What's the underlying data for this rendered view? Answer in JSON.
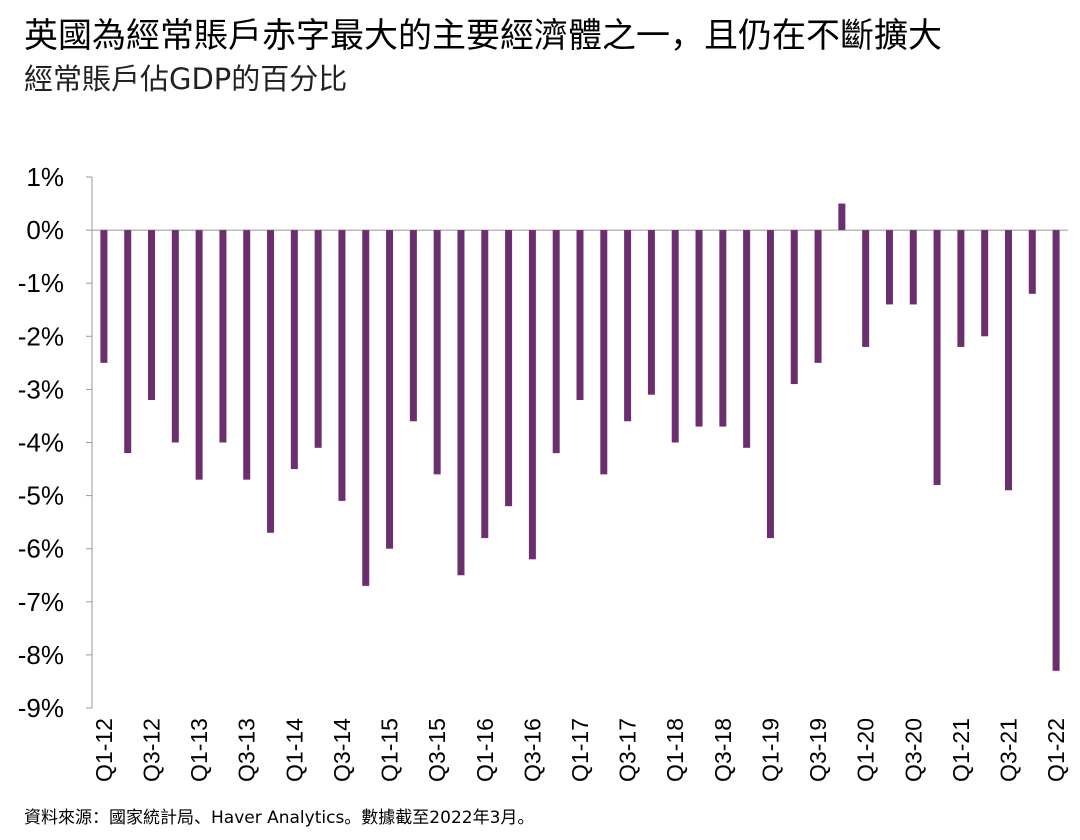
{
  "title": "英國為經常賬戶赤字最大的主要經濟體之一，且仍在不斷擴大",
  "subtitle": "經常賬戶佔GDP的百分比",
  "source": "資料來源：國家統計局、Haver Analytics。數據截至2022年3月。",
  "colors": {
    "bar": "#6B2F6E",
    "axis": "#999999"
  },
  "chart_data": {
    "type": "bar",
    "quarters": [
      "Q1-12",
      "Q2-12",
      "Q3-12",
      "Q4-12",
      "Q1-13",
      "Q2-13",
      "Q3-13",
      "Q4-13",
      "Q1-14",
      "Q2-14",
      "Q3-14",
      "Q4-14",
      "Q1-15",
      "Q2-15",
      "Q3-15",
      "Q4-15",
      "Q1-16",
      "Q2-16",
      "Q3-16",
      "Q4-16",
      "Q1-17",
      "Q2-17",
      "Q3-17",
      "Q4-17",
      "Q1-18",
      "Q2-18",
      "Q3-18",
      "Q4-18",
      "Q1-19",
      "Q2-19",
      "Q3-19",
      "Q4-19",
      "Q1-20",
      "Q2-20",
      "Q3-20",
      "Q4-20",
      "Q1-21",
      "Q2-21",
      "Q3-21",
      "Q4-21",
      "Q1-22"
    ],
    "tick_labels": [
      "Q1-12",
      "",
      "Q3-12",
      "",
      "Q1-13",
      "",
      "Q3-13",
      "",
      "Q1-14",
      "",
      "Q3-14",
      "",
      "Q1-15",
      "",
      "Q3-15",
      "",
      "Q1-16",
      "",
      "Q3-16",
      "",
      "Q1-17",
      "",
      "Q3-17",
      "",
      "Q1-18",
      "",
      "Q3-18",
      "",
      "Q1-19",
      "",
      "Q3-19",
      "",
      "Q1-20",
      "",
      "Q3-20",
      "",
      "Q1-21",
      "",
      "Q3-21",
      "",
      "Q1-22"
    ],
    "values": [
      -2.5,
      -4.2,
      -3.2,
      -4.0,
      -4.7,
      -4.0,
      -4.7,
      -5.7,
      -4.5,
      -4.1,
      -5.1,
      -6.7,
      -6.0,
      -3.6,
      -4.6,
      -6.5,
      -5.8,
      -5.2,
      -6.2,
      -4.2,
      -3.2,
      -4.6,
      -3.6,
      -3.1,
      -4.0,
      -3.7,
      -3.7,
      -4.1,
      -5.8,
      -2.9,
      -2.5,
      0.5,
      -2.2,
      -1.4,
      -1.4,
      -4.8,
      -2.2,
      -2.0,
      -4.9,
      -1.2,
      -8.3
    ],
    "ylim": [
      -9,
      1
    ],
    "yticks": [
      1,
      0,
      -1,
      -2,
      -3,
      -4,
      -5,
      -6,
      -7,
      -8,
      -9
    ],
    "ytick_labels": [
      "1%",
      "0%",
      "-1%",
      "-2%",
      "-3%",
      "-4%",
      "-5%",
      "-6%",
      "-7%",
      "-8%",
      "-9%"
    ],
    "grid": false
  }
}
